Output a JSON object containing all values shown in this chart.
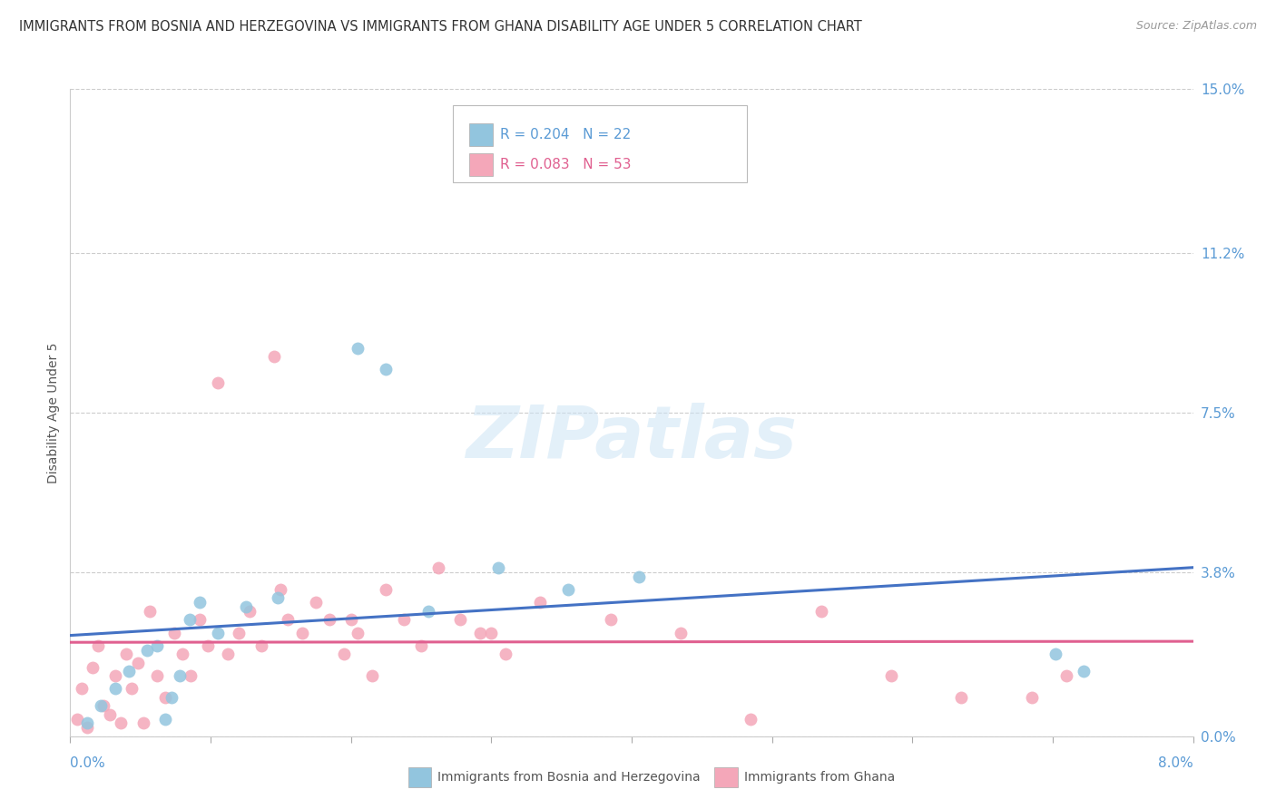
{
  "title": "IMMIGRANTS FROM BOSNIA AND HERZEGOVINA VS IMMIGRANTS FROM GHANA DISABILITY AGE UNDER 5 CORRELATION CHART",
  "source": "Source: ZipAtlas.com",
  "ylabel": "Disability Age Under 5",
  "ytick_values": [
    0.0,
    3.8,
    7.5,
    11.2,
    15.0
  ],
  "xlim": [
    0.0,
    8.0
  ],
  "ylim": [
    0.0,
    15.0
  ],
  "legend1_R": "0.204",
  "legend1_N": "22",
  "legend2_R": "0.083",
  "legend2_N": "53",
  "bosnia_color": "#92c5de",
  "ghana_color": "#f4a7b9",
  "bosnia_line_color": "#4472c4",
  "ghana_line_color": "#e06090",
  "bosnia_label": "Immigrants from Bosnia and Herzegovina",
  "ghana_label": "Immigrants from Ghana",
  "axis_label_color": "#5b9bd5",
  "title_color": "#333333",
  "background_color": "#ffffff",
  "grid_color": "#cccccc",
  "bosnia_x": [
    0.12,
    0.22,
    0.32,
    0.42,
    0.55,
    0.62,
    0.68,
    0.72,
    0.78,
    0.85,
    0.92,
    1.05,
    1.25,
    1.48,
    2.05,
    2.25,
    2.55,
    3.05,
    3.55,
    4.05,
    7.02,
    7.22
  ],
  "bosnia_y": [
    0.3,
    0.7,
    1.1,
    1.5,
    2.0,
    2.1,
    0.4,
    0.9,
    1.4,
    2.7,
    3.1,
    2.4,
    3.0,
    3.2,
    9.0,
    8.5,
    2.9,
    3.9,
    3.4,
    3.7,
    1.9,
    1.5
  ],
  "ghana_x": [
    0.05,
    0.08,
    0.12,
    0.16,
    0.2,
    0.24,
    0.28,
    0.32,
    0.36,
    0.4,
    0.44,
    0.48,
    0.52,
    0.57,
    0.62,
    0.68,
    0.74,
    0.8,
    0.86,
    0.92,
    0.98,
    1.05,
    1.12,
    1.2,
    1.28,
    1.36,
    1.45,
    1.55,
    1.65,
    1.75,
    1.85,
    1.95,
    2.05,
    2.15,
    2.25,
    2.38,
    2.5,
    2.62,
    2.78,
    2.92,
    3.1,
    3.35,
    3.85,
    4.35,
    4.85,
    5.35,
    5.85,
    6.35,
    6.85,
    7.1,
    1.5,
    2.0,
    3.0
  ],
  "ghana_y": [
    0.4,
    1.1,
    0.2,
    1.6,
    2.1,
    0.7,
    0.5,
    1.4,
    0.3,
    1.9,
    1.1,
    1.7,
    0.3,
    2.9,
    1.4,
    0.9,
    2.4,
    1.9,
    1.4,
    2.7,
    2.1,
    8.2,
    1.9,
    2.4,
    2.9,
    2.1,
    8.8,
    2.7,
    2.4,
    3.1,
    2.7,
    1.9,
    2.4,
    1.4,
    3.4,
    2.7,
    2.1,
    3.9,
    2.7,
    2.4,
    1.9,
    3.1,
    2.7,
    2.4,
    0.4,
    2.9,
    1.4,
    0.9,
    0.9,
    1.4,
    3.4,
    2.7,
    2.4
  ]
}
